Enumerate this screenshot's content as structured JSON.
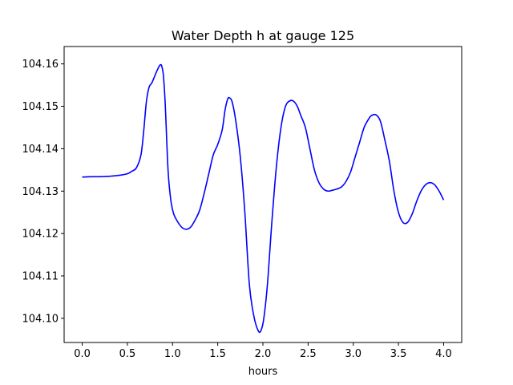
{
  "chart_data": {
    "type": "line",
    "title": "Water Depth h at gauge 125",
    "xlabel": "hours",
    "ylabel": "",
    "xlim": [
      -0.2,
      4.2
    ],
    "ylim": [
      104.0943,
      104.1641
    ],
    "xticks": [
      0.0,
      0.5,
      1.0,
      1.5,
      2.0,
      2.5,
      3.0,
      3.5,
      4.0
    ],
    "xtick_labels": [
      "0.0",
      "0.5",
      "1.0",
      "1.5",
      "2.0",
      "2.5",
      "3.0",
      "3.5",
      "4.0"
    ],
    "yticks": [
      104.1,
      104.11,
      104.12,
      104.13,
      104.14,
      104.15,
      104.16
    ],
    "ytick_labels": [
      "104.10",
      "104.11",
      "104.12",
      "104.13",
      "104.14",
      "104.15",
      "104.16"
    ],
    "grid": false,
    "series": [
      {
        "color": "#0000ff",
        "x": [
          0.0,
          0.1,
          0.2,
          0.3,
          0.4,
          0.5,
          0.55,
          0.6,
          0.65,
          0.68,
          0.71,
          0.74,
          0.77,
          0.8,
          0.83,
          0.86,
          0.88,
          0.9,
          0.92,
          0.95,
          0.98,
          1.01,
          1.05,
          1.1,
          1.15,
          1.2,
          1.25,
          1.3,
          1.35,
          1.4,
          1.45,
          1.5,
          1.55,
          1.58,
          1.61,
          1.63,
          1.66,
          1.7,
          1.75,
          1.8,
          1.85,
          1.9,
          1.95,
          1.98,
          2.01,
          2.05,
          2.1,
          2.15,
          2.2,
          2.25,
          2.3,
          2.34,
          2.38,
          2.42,
          2.47,
          2.52,
          2.57,
          2.62,
          2.67,
          2.72,
          2.77,
          2.82,
          2.87,
          2.92,
          2.97,
          3.02,
          3.07,
          3.12,
          3.17,
          3.2,
          3.25,
          3.3,
          3.35,
          3.4,
          3.45,
          3.5,
          3.55,
          3.6,
          3.65,
          3.7,
          3.75,
          3.8,
          3.85,
          3.9,
          3.95,
          4.0
        ],
        "y": [
          104.1333,
          104.1334,
          104.1334,
          104.1335,
          104.1337,
          104.1341,
          104.1347,
          104.1355,
          104.1385,
          104.144,
          104.151,
          104.1545,
          104.1555,
          104.157,
          104.1585,
          104.1597,
          104.1595,
          104.157,
          104.15,
          104.135,
          104.128,
          104.1248,
          104.123,
          104.1215,
          104.121,
          104.1215,
          104.1232,
          104.1255,
          104.1295,
          104.134,
          104.1385,
          104.141,
          104.1445,
          104.149,
          104.1517,
          104.152,
          104.151,
          104.1465,
          104.138,
          104.125,
          104.108,
          104.1005,
          104.097,
          104.0972,
          104.1,
          104.108,
          104.123,
          104.136,
          104.145,
          104.15,
          104.1513,
          104.1512,
          104.15,
          104.1478,
          104.145,
          104.14,
          104.135,
          104.132,
          104.1305,
          104.13,
          104.1302,
          104.1305,
          104.131,
          104.1323,
          104.1345,
          104.138,
          104.1415,
          104.145,
          104.147,
          104.1478,
          104.148,
          104.1465,
          104.142,
          104.137,
          104.13,
          104.125,
          104.1226,
          104.1226,
          104.1245,
          104.1275,
          104.13,
          104.1315,
          104.132,
          104.1315,
          104.13,
          104.1279
        ]
      }
    ]
  }
}
